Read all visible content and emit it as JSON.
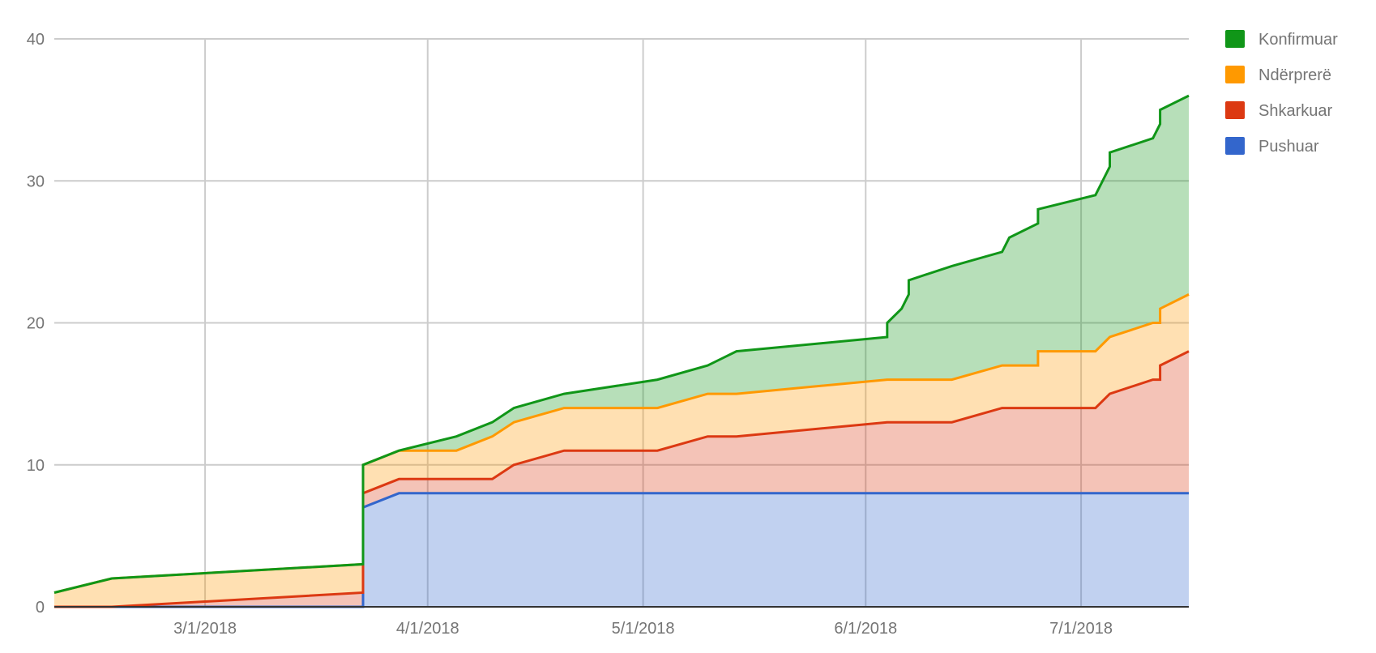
{
  "chart_data": {
    "type": "area",
    "stacked": true,
    "title": "",
    "xlabel": "",
    "ylabel": "",
    "xlim": [
      "2018-02-08",
      "2018-07-16"
    ],
    "ylim": [
      0,
      40
    ],
    "grid": true,
    "legend_position": "right",
    "y_ticks": [
      0,
      10,
      20,
      30,
      40
    ],
    "x_ticks": [
      {
        "date": "2018-03-01",
        "label": "3/1/2018"
      },
      {
        "date": "2018-04-01",
        "label": "4/1/2018"
      },
      {
        "date": "2018-05-01",
        "label": "5/1/2018"
      },
      {
        "date": "2018-06-01",
        "label": "6/1/2018"
      },
      {
        "date": "2018-07-01",
        "label": "7/1/2018"
      }
    ],
    "x": [
      "2018-02-08",
      "2018-02-16",
      "2018-03-23",
      "2018-03-23",
      "2018-03-28",
      "2018-04-05",
      "2018-04-10",
      "2018-04-13",
      "2018-04-20",
      "2018-05-03",
      "2018-05-10",
      "2018-05-14",
      "2018-06-04",
      "2018-06-04",
      "2018-06-06",
      "2018-06-07",
      "2018-06-07",
      "2018-06-13",
      "2018-06-20",
      "2018-06-21",
      "2018-06-25",
      "2018-06-25",
      "2018-07-03",
      "2018-07-05",
      "2018-07-05",
      "2018-07-11",
      "2018-07-12",
      "2018-07-12",
      "2018-07-16"
    ],
    "series": [
      {
        "name": "Pushuar",
        "color": "#3366cc",
        "values": [
          0,
          0,
          0,
          7,
          8,
          8,
          8,
          8,
          8,
          8,
          8,
          8,
          8,
          8,
          8,
          8,
          8,
          8,
          8,
          8,
          8,
          8,
          8,
          8,
          8,
          8,
          8,
          8,
          8
        ]
      },
      {
        "name": "Shkarkuar",
        "color": "#dc3912",
        "values": [
          0,
          0,
          1,
          1,
          1,
          1,
          1,
          2,
          3,
          3,
          4,
          4,
          5,
          5,
          5,
          5,
          5,
          5,
          6,
          6,
          6,
          6,
          6,
          7,
          7,
          8,
          8,
          9,
          10
        ]
      },
      {
        "name": "Ndërprerë",
        "color": "#ff9900",
        "values": [
          1,
          2,
          2,
          2,
          2,
          2,
          3,
          3,
          3,
          3,
          3,
          3,
          3,
          3,
          3,
          3,
          3,
          3,
          3,
          3,
          3,
          4,
          4,
          4,
          4,
          4,
          4,
          4,
          4
        ]
      },
      {
        "name": "Konfirmuar",
        "color": "#109618",
        "values": [
          0,
          0,
          0,
          0,
          0,
          1,
          1,
          1,
          1,
          2,
          2,
          3,
          3,
          4,
          5,
          6,
          7,
          8,
          8,
          9,
          10,
          10,
          11,
          12,
          13,
          13,
          14,
          14,
          14
        ]
      }
    ],
    "legend_order": [
      "Konfirmuar",
      "Ndërprerë",
      "Shkarkuar",
      "Pushuar"
    ]
  }
}
